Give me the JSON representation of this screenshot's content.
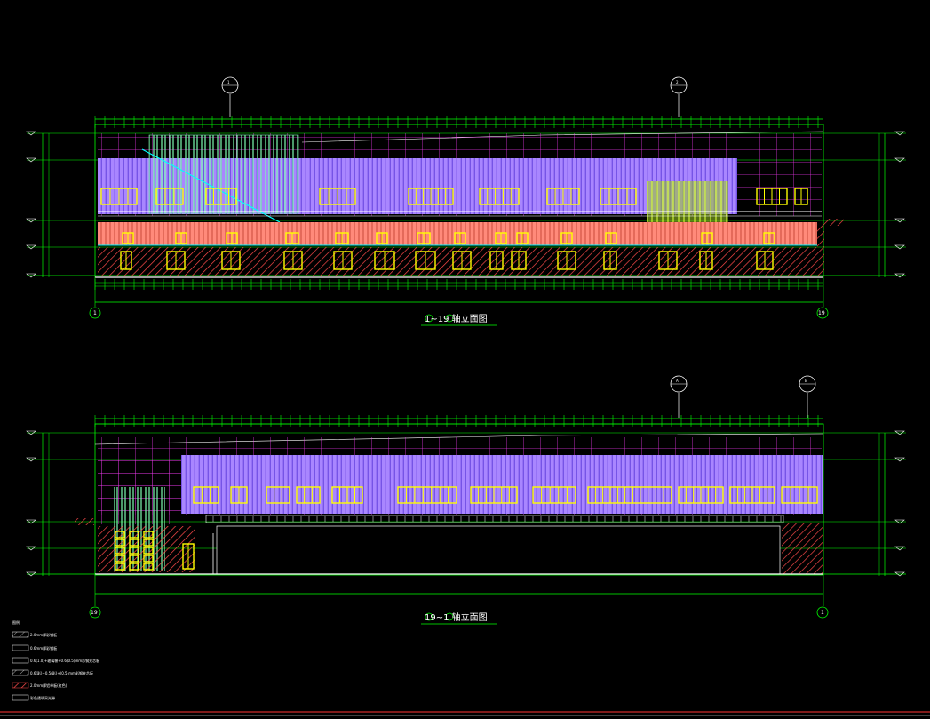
{
  "colors": {
    "background": "#000000",
    "green": "#00ff00",
    "white": "#ffffff",
    "magenta": "#ff00ff",
    "purple": "#a986ff",
    "yellow": "#ffff00",
    "red": "#ff0000",
    "salmon": "#ff8a7a",
    "cyan": "#00ffff",
    "lime": "#b5ff2a",
    "mint": "#7dffb0"
  },
  "elevation_a": {
    "title": "1~19 轴立面图",
    "left_grid": "1",
    "right_grid": "19",
    "callout_1": "1",
    "callout_2": "2"
  },
  "elevation_b": {
    "title": "19~1 轴立面图",
    "left_grid": "19",
    "right_grid": "1",
    "callout_1": "A",
    "callout_2": "B"
  },
  "legend": {
    "heading": "图例",
    "items": [
      "2.0mm厚彩钢板",
      "0.6mm厚彩钢板",
      "0.6(1.0)+玻璃棉+0.6(0.5)mm彩钢夹芯板",
      "0.6(彩)+0.5(彩)+(0.5)mm彩钢夹芯板",
      "2.0mm厚铝单板(红色)",
      "彩色透明采光带"
    ]
  }
}
